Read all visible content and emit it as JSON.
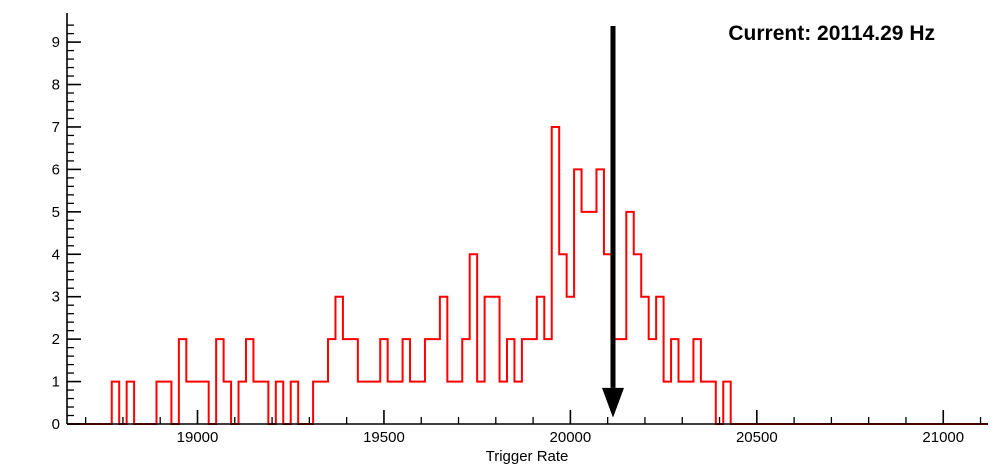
{
  "colors": {
    "histogram": "#ff0000",
    "axis": "#000000",
    "arrow": "#000000",
    "background": "#ffffff"
  },
  "chart_data": {
    "type": "bar",
    "subtype": "step-histogram",
    "title": "Current: 20114.29 Hz",
    "xlabel": "Trigger Rate",
    "ylabel": "",
    "grid": false,
    "legend": "none",
    "xlim": [
      18650,
      21120
    ],
    "ylim": [
      0,
      9.45
    ],
    "x_ticks_major": [
      19000,
      19500,
      20000,
      20500,
      21000
    ],
    "x_minor_step": 100,
    "y_ticks_major": [
      0,
      1,
      2,
      3,
      4,
      5,
      6,
      7,
      8,
      9
    ],
    "y_minor_step": 0.2,
    "bin_start": 18650,
    "bin_width": 20,
    "values": [
      0,
      0,
      0,
      0,
      0,
      0,
      1,
      0,
      1,
      0,
      0,
      0,
      1,
      1,
      0,
      2,
      1,
      1,
      1,
      0,
      2,
      1,
      0,
      1,
      2,
      1,
      1,
      0,
      1,
      0,
      1,
      0,
      0,
      1,
      1,
      2,
      3,
      2,
      2,
      1,
      1,
      1,
      2,
      1,
      1,
      2,
      1,
      1,
      2,
      2,
      3,
      1,
      1,
      2,
      4,
      1,
      3,
      3,
      1,
      2,
      1,
      2,
      2,
      3,
      2,
      7,
      4,
      3,
      6,
      5,
      5,
      6,
      4,
      2,
      2,
      5,
      4,
      3,
      2,
      3,
      1,
      2,
      1,
      1,
      2,
      1,
      1,
      0,
      1,
      0,
      0,
      0,
      0,
      0,
      0,
      0,
      0,
      0,
      0,
      0,
      0,
      0,
      0,
      0,
      0,
      0,
      0,
      0,
      0,
      0,
      0,
      0,
      0,
      0,
      0,
      0,
      0,
      0,
      0,
      0,
      0,
      0,
      0
    ],
    "marker": {
      "kind": "down-arrow",
      "x": 20114.29,
      "y_top": 9.38,
      "y_head_base": 0.85,
      "y_tip": 0.15
    }
  }
}
